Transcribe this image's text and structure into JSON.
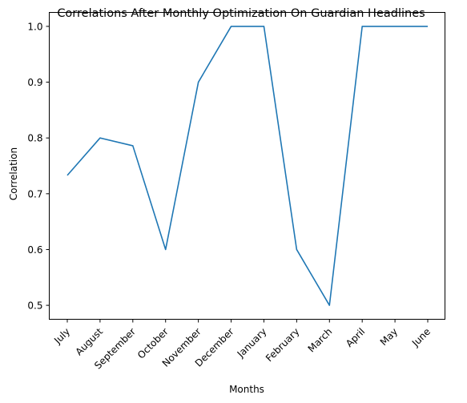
{
  "chart_data": {
    "type": "line",
    "title": "Correlations After Monthly Optimization On Guardian Headlines",
    "xlabel": "Months",
    "ylabel": "Correlation",
    "categories": [
      "July",
      "August",
      "September",
      "October",
      "November",
      "December",
      "January",
      "February",
      "March",
      "April",
      "May",
      "June"
    ],
    "series": [
      {
        "values": [
          0.733,
          0.8,
          0.786,
          0.6,
          0.9,
          1.0,
          1.0,
          0.6,
          0.5,
          1.0,
          1.0,
          1.0
        ],
        "color": "#1f77b4"
      }
    ],
    "ylim": [
      0.475,
      1.025
    ],
    "yticks": [
      0.5,
      0.6,
      0.7,
      0.8,
      0.9,
      1.0
    ],
    "ytick_labels": [
      "0.5",
      "0.6",
      "0.7",
      "0.8",
      "0.9",
      "1.0"
    ],
    "grid": false,
    "legend": "none"
  }
}
